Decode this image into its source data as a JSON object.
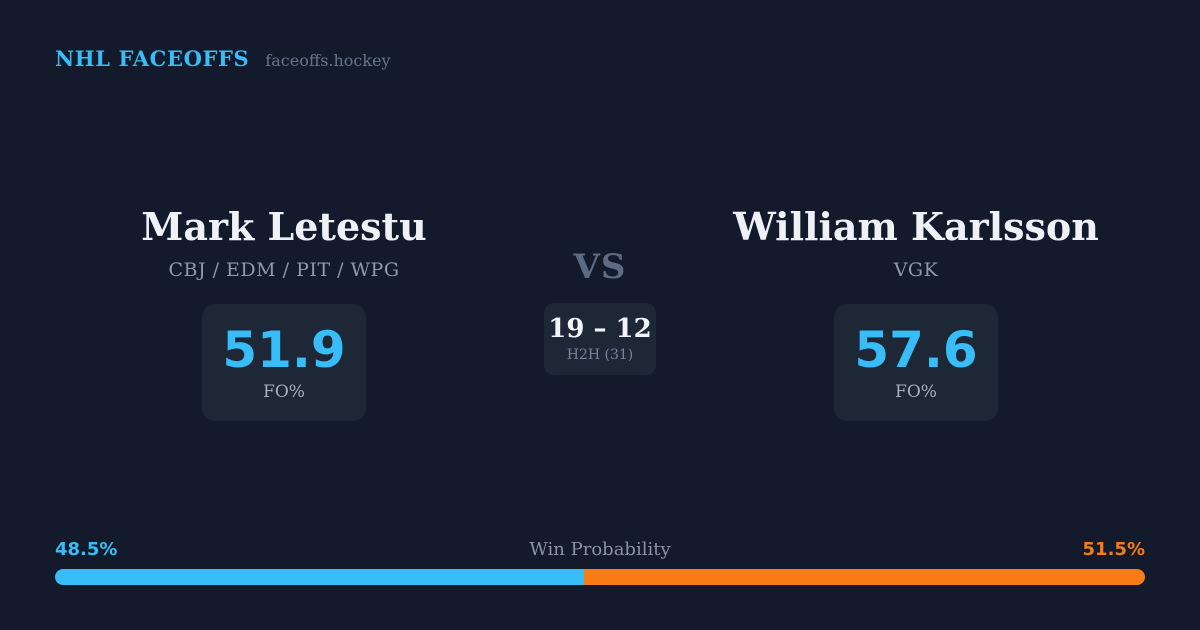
{
  "header": {
    "brand": "NHL FACEOFFS",
    "site": "faceoffs.hockey"
  },
  "players": {
    "left": {
      "name": "Mark Letestu",
      "teams": "CBJ / EDM / PIT / WPG",
      "fo_value": "51.9",
      "fo_label": "FO%"
    },
    "right": {
      "name": "William Karlsson",
      "teams": "VGK",
      "fo_value": "57.6",
      "fo_label": "FO%"
    }
  },
  "center": {
    "vs_label": "VS",
    "h2h_score": "19 – 12",
    "h2h_label": "H2H (31)"
  },
  "win_probability": {
    "label": "Win Probability",
    "left_label": "48.5%",
    "right_label": "51.5%",
    "left_value": 48.5,
    "right_value": 51.5,
    "left_color": "#38bdf8",
    "right_color": "#f97b16"
  },
  "colors": {
    "background": "#121a2b",
    "card_background": "#1d2736",
    "accent_blue": "#38bdf8",
    "accent_orange": "#f97b16",
    "text_primary": "#eef2f7",
    "text_muted": "#8d99ad"
  }
}
